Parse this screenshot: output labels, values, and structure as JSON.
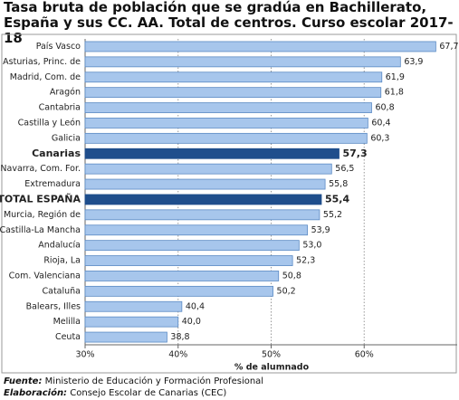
{
  "chart_data": {
    "type": "bar",
    "orientation": "horizontal",
    "title": "Tasa bruta de población que se gradúa en Bachillerato, España y sus CC. AA. Total de centros. Curso escolar 2017-18",
    "x_label": "% de alumnado",
    "categories": [
      "País Vasco",
      "Asturias, Princ. de",
      "Madrid, Com. de",
      "Aragón",
      "Cantabria",
      "Castilla y León",
      "Galicia",
      "Canarias",
      "Navarra, Com. For.",
      "Extremadura",
      "TOTAL ESPAÑA",
      "Murcia, Región de",
      "Castilla-La Mancha",
      "Andalucía",
      "Rioja, La",
      "Com. Valenciana",
      "Cataluña",
      "Balears, Illes",
      "Melilla",
      "Ceuta"
    ],
    "values": [
      67.7,
      63.9,
      61.9,
      61.8,
      60.8,
      60.4,
      60.3,
      57.3,
      56.5,
      55.8,
      55.4,
      55.2,
      53.9,
      53.0,
      52.3,
      50.8,
      50.2,
      40.4,
      40.0,
      38.8
    ],
    "value_labels": [
      "67,7",
      "63,9",
      "61,9",
      "61,8",
      "60,8",
      "60,4",
      "60,3",
      "57,3",
      "56,5",
      "55,8",
      "55,4",
      "55,2",
      "53,9",
      "53,0",
      "52,3",
      "50,8",
      "50,2",
      "40,4",
      "40,0",
      "38,8"
    ],
    "color": "#a7c6ec",
    "highlight_color": "#1f4e8c",
    "colors": [
      "#a7c6ec",
      "#a7c6ec",
      "#a7c6ec",
      "#a7c6ec",
      "#a7c6ec",
      "#a7c6ec",
      "#a7c6ec",
      "#1f4e8c",
      "#a7c6ec",
      "#a7c6ec",
      "#1f4e8c",
      "#a7c6ec",
      "#a7c6ec",
      "#a7c6ec",
      "#a7c6ec",
      "#a7c6ec",
      "#a7c6ec",
      "#a7c6ec",
      "#a7c6ec",
      "#a7c6ec"
    ],
    "xlim": [
      30,
      70
    ],
    "xticks": [
      {
        "value": 30,
        "label": "30%"
      },
      {
        "value": 40,
        "label": "40%"
      },
      {
        "value": 50,
        "label": "50%"
      },
      {
        "value": 60,
        "label": "60%"
      }
    ],
    "grid": true
  },
  "footer": {
    "source_label": "Fuente:",
    "source": "Ministerio de Educación y Formación Profesional",
    "credit_label": "Elaboración:",
    "credit": "Consejo Escolar de Canarias (CEC)"
  }
}
